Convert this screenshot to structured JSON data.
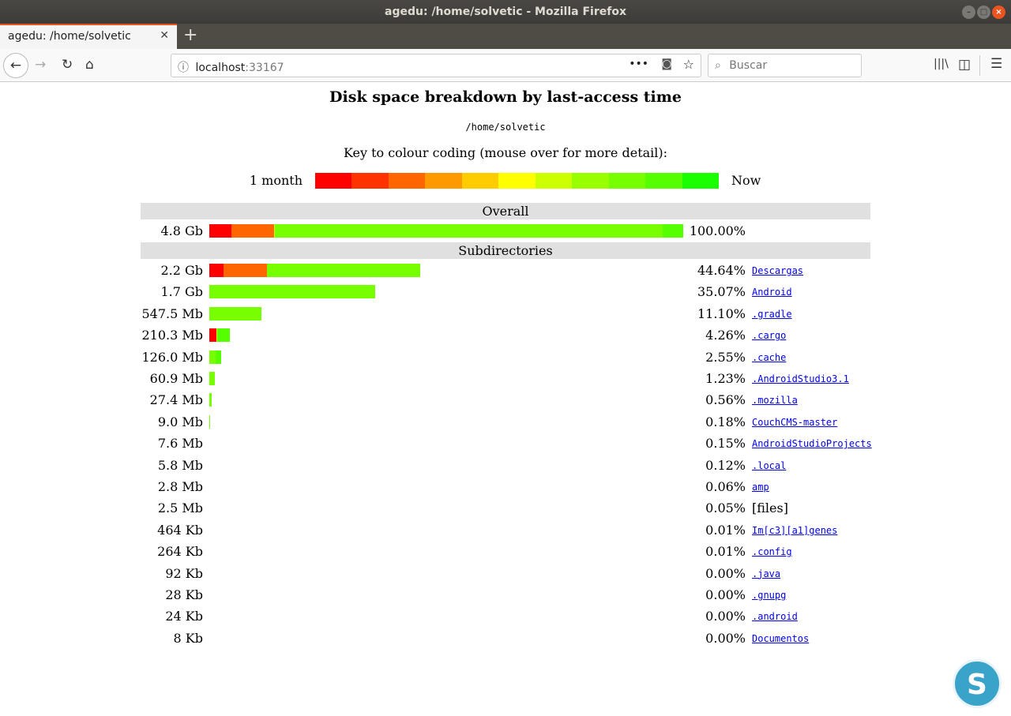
{
  "window": {
    "title": "agedu: /home/solvetic - Mozilla Firefox"
  },
  "tab": {
    "title": "agedu: /home/solvetic"
  },
  "url": {
    "host": "localhost",
    "port": ":33167"
  },
  "search": {
    "placeholder": "Buscar"
  },
  "page": {
    "title": "Disk space breakdown by last-access time",
    "path": "/home/solvetic",
    "key_label": "Key to colour coding (mouse over for more detail):",
    "key_left": "1 month",
    "key_right": "Now",
    "key_colors": [
      "#ff0000",
      "#ff3300",
      "#ff6600",
      "#ff9900",
      "#ffcc00",
      "#ffff00",
      "#ccff00",
      "#99ff00",
      "#77ff00",
      "#55ff00",
      "#1aff00"
    ],
    "overall_label": "Overall",
    "subdirs_label": "Subdirectories",
    "overall": {
      "size": "4.8 Gb",
      "pct": "100.00%",
      "segments": [
        [
          4.67,
          "#ff0000"
        ],
        [
          9,
          "#ff6600"
        ],
        [
          0.17,
          "#ccff00"
        ],
        [
          81.83,
          "#77ff00"
        ],
        [
          4.33,
          "#55ff00"
        ]
      ]
    },
    "rows": [
      {
        "size": "2.2 Gb",
        "pct": "44.64%",
        "name": "Descargas",
        "link": true,
        "segments": [
          [
            3,
            "#ff0000"
          ],
          [
            9.17,
            "#ff6600"
          ],
          [
            32.3,
            "#77ff00"
          ]
        ]
      },
      {
        "size": "1.7 Gb",
        "pct": "35.07%",
        "name": "Android",
        "link": true,
        "segments": [
          [
            35,
            "#77ff00"
          ]
        ]
      },
      {
        "size": "547.5 Mb",
        "pct": "11.10%",
        "name": ".gradle",
        "link": true,
        "segments": [
          [
            11,
            "#77ff00"
          ]
        ]
      },
      {
        "size": "210.3 Mb",
        "pct": "4.26%",
        "name": ".cargo",
        "link": true,
        "segments": [
          [
            1.5,
            "#ff0000"
          ],
          [
            0.17,
            "#ccff00"
          ],
          [
            2.6,
            "#55ff00"
          ]
        ]
      },
      {
        "size": "126.0 Mb",
        "pct": "2.55%",
        "name": ".cache",
        "link": true,
        "segments": [
          [
            1.35,
            "#77ff00"
          ],
          [
            1.2,
            "#55ff00"
          ]
        ]
      },
      {
        "size": "60.9 Mb",
        "pct": "1.23%",
        "name": ".AndroidStudio3.1",
        "link": true,
        "segments": [
          [
            1.2,
            "#77ff00"
          ]
        ]
      },
      {
        "size": "27.4 Mb",
        "pct": "0.56%",
        "name": ".mozilla",
        "link": true,
        "segments": [
          [
            0.5,
            "#77ff00"
          ]
        ]
      },
      {
        "size": "9.0 Mb",
        "pct": "0.18%",
        "name": "CouchCMS-master",
        "link": true,
        "segments": [
          [
            0.18,
            "#77ff00"
          ]
        ]
      },
      {
        "size": "7.6 Mb",
        "pct": "0.15%",
        "name": "AndroidStudioProjects",
        "link": true,
        "segments": []
      },
      {
        "size": "5.8 Mb",
        "pct": "0.12%",
        "name": ".local",
        "link": true,
        "segments": []
      },
      {
        "size": "2.8 Mb",
        "pct": "0.06%",
        "name": "amp",
        "link": true,
        "segments": []
      },
      {
        "size": "2.5 Mb",
        "pct": "0.05%",
        "name": "[files]",
        "link": false,
        "segments": []
      },
      {
        "size": "464 Kb",
        "pct": "0.01%",
        "name": "Im[c3][a1]genes",
        "link": true,
        "segments": []
      },
      {
        "size": "264 Kb",
        "pct": "0.01%",
        "name": ".config",
        "link": true,
        "segments": []
      },
      {
        "size": "92 Kb",
        "pct": "0.00%",
        "name": ".java",
        "link": true,
        "segments": []
      },
      {
        "size": "28 Kb",
        "pct": "0.00%",
        "name": ".gnupg",
        "link": true,
        "segments": []
      },
      {
        "size": "24 Kb",
        "pct": "0.00%",
        "name": ".android",
        "link": true,
        "segments": []
      },
      {
        "size": "8 Kb",
        "pct": "0.00%",
        "name": "Documentos",
        "link": true,
        "segments": []
      }
    ]
  }
}
